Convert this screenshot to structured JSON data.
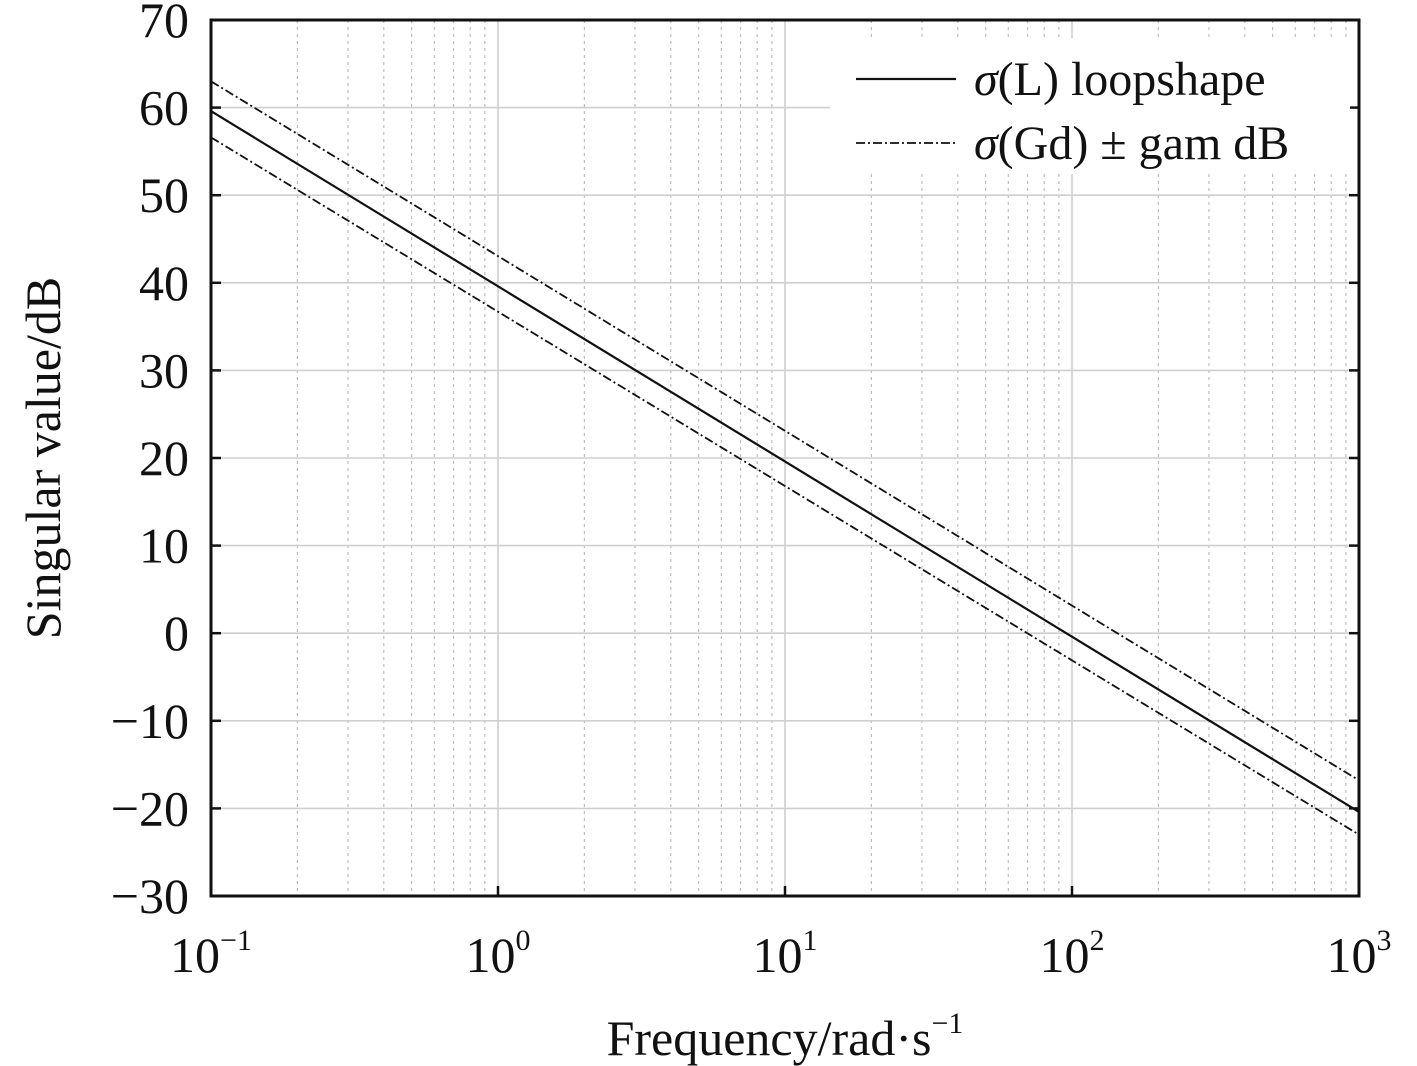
{
  "chart_data": {
    "type": "line",
    "title": "",
    "xlabel": "Frequency/rad·s",
    "xlabel_sup": "−1",
    "ylabel": "Singular value/dB",
    "xscale": "log",
    "xlim": [
      0.1,
      1000
    ],
    "ylim": [
      -30,
      70
    ],
    "grid": true,
    "legend_position": "top-right",
    "x_ticks": [
      {
        "base": "10",
        "exp": "−1"
      },
      {
        "base": "10",
        "exp": "0"
      },
      {
        "base": "10",
        "exp": "1"
      },
      {
        "base": "10",
        "exp": "2"
      },
      {
        "base": "10",
        "exp": "3"
      }
    ],
    "y_ticks": [
      "70",
      "60",
      "50",
      "40",
      "30",
      "20",
      "10",
      "0",
      "−10",
      "−20",
      "−30"
    ],
    "series": [
      {
        "name": "σ(L) loopshape",
        "style": "solid",
        "x": [
          0.1,
          1000
        ],
        "y": [
          59.6,
          -20.4
        ]
      },
      {
        "name": "σ(Gd) ± gam dB",
        "style": "dashdot",
        "x": [
          0.1,
          1000
        ],
        "y": [
          63.0,
          -16.8
        ]
      },
      {
        "name": "",
        "style": "dashdot",
        "x": [
          0.1,
          1000
        ],
        "y": [
          56.6,
          -23.0
        ]
      }
    ],
    "legend": [
      {
        "label_sym": "σ",
        "label_rest": "(L) loopshape",
        "style": "solid"
      },
      {
        "label_sym": "σ",
        "label_rest": "(Gd) ± gam dB",
        "style": "dashdot"
      }
    ],
    "colors": {
      "line": "#111111",
      "grid_major": "#cfcfcf",
      "grid_minor": "#bdbdbd",
      "frame": "#111111"
    }
  }
}
